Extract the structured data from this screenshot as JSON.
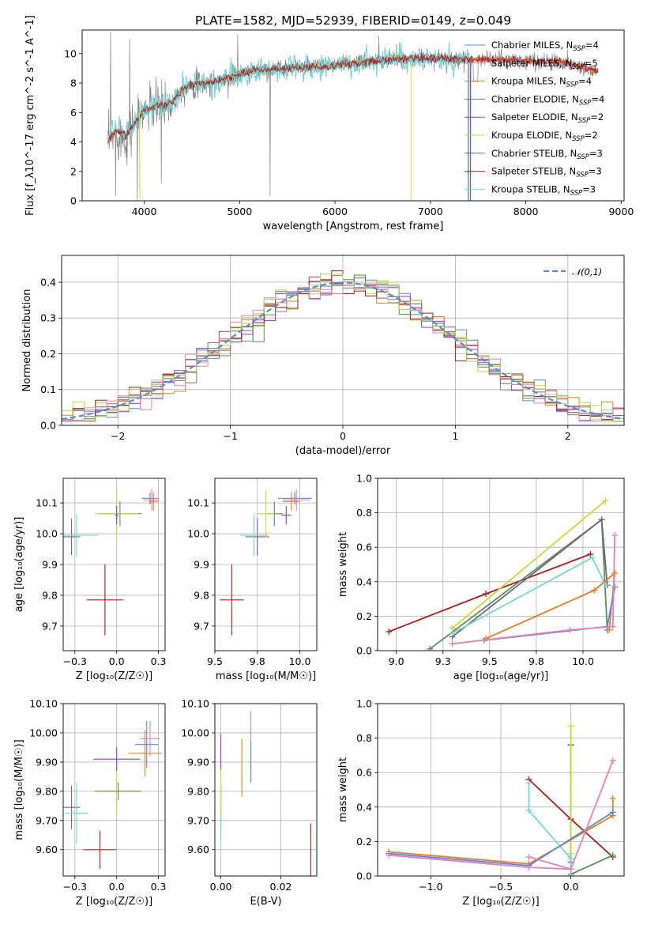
{
  "colors": [
    "#5b87d6",
    "#e07f25",
    "#5b8a5b",
    "#9b35c7",
    "#c8d640",
    "#6b6b6b",
    "#a81c1c",
    "#7bd4d4",
    "#e082b7",
    "#9c6b4a",
    "#a5d16a"
  ],
  "chart_data": [
    {
      "id": "spectrum",
      "type": "line",
      "title": "PLATE=1582, MJD=52939, FIBERID=0149, z=0.049",
      "xlabel": "wavelength [Angstrom, rest frame]",
      "ylabel": "Flux [f_λ10^-17 erg cm^-2 s^-1 A^-1]",
      "xlim": [
        3350,
        9030
      ],
      "ylim": [
        0,
        11.6
      ],
      "xticks": [
        4000,
        5000,
        6000,
        7000,
        8000,
        9000
      ],
      "yticks": [
        0,
        2,
        4,
        6,
        8,
        10
      ],
      "grid": false,
      "legend_position": "right",
      "data_range": [
        3620,
        8760
      ],
      "continuum": {
        "x": [
          3620,
          3700,
          3800,
          3900,
          4000,
          4100,
          4200,
          4300,
          4400,
          4500,
          4600,
          4800,
          5000,
          5200,
          5500,
          5800,
          6000,
          6300,
          6600,
          7000,
          7300,
          7600,
          8000,
          8400,
          8760
        ],
        "y": [
          3.9,
          4.6,
          4.3,
          5.3,
          6.1,
          6.4,
          6.5,
          6.7,
          7.6,
          7.9,
          7.9,
          8.2,
          8.6,
          8.9,
          9.0,
          9.1,
          9.2,
          9.4,
          9.6,
          9.7,
          9.6,
          9.6,
          9.5,
          9.4,
          8.8
        ]
      },
      "series": [
        {
          "name": "Chabrier MILES, N_SSP=4"
        },
        {
          "name": "Salpeter MILES, N_SSP=5"
        },
        {
          "name": "Kroupa MILES, N_SSP=4"
        },
        {
          "name": "Chabrier ELODIE, N_SSP=4"
        },
        {
          "name": "Salpeter ELODIE, N_SSP=2"
        },
        {
          "name": "Kroupa ELODIE, N_SSP=2"
        },
        {
          "name": "Chabrier STELIB, N_SSP=3"
        },
        {
          "name": "Salpeter STELIB, N_SSP=3"
        },
        {
          "name": "Kroupa STELIB, N_SSP=3"
        }
      ]
    },
    {
      "id": "residuals",
      "type": "histogram",
      "xlabel": "(data-model)/error",
      "ylabel": "Normed distribution",
      "xlim": [
        -2.5,
        2.5
      ],
      "ylim": [
        0,
        0.475
      ],
      "xticks": [
        -2,
        -1,
        0,
        1,
        2
      ],
      "yticks": [
        0,
        0.1,
        0.2,
        0.3,
        0.4
      ],
      "grid": true,
      "bin_width": 0.1,
      "reference": {
        "name": "𝒩(0,1)",
        "type": "dashed-line"
      },
      "legend_position": "top-right"
    },
    {
      "id": "age_vs_Z",
      "type": "errorbar",
      "xlabel": "Z [log₁₀(Z/Z☉)]",
      "ylabel": "age  [log₁₀(age/yr)]",
      "xlim": [
        -0.32,
        0.29
      ],
      "ylim": [
        9.62,
        10.18
      ],
      "xticks": [
        -0.25,
        0.0,
        0.25
      ],
      "yticks": [
        9.7,
        9.8,
        9.9,
        10.0,
        10.1
      ],
      "grid": true,
      "points": [
        {
          "x": -0.27,
          "xerr": 0.05,
          "y": 9.99,
          "yerr": 0.06,
          "c": 5
        },
        {
          "x": -0.24,
          "xerr": 0.13,
          "y": 9.995,
          "yerr": 0.07,
          "c": 7
        },
        {
          "x": -0.07,
          "xerr": 0.11,
          "y": 9.785,
          "yerr": 0.115,
          "c": 6
        },
        {
          "x": 0.02,
          "xerr": 0.13,
          "y": 10.065,
          "yerr": 0.04,
          "c": 2
        },
        {
          "x": 0.0,
          "xerr": 0.13,
          "y": 10.065,
          "yerr": 0.075,
          "c": 4
        },
        {
          "x": 0.0,
          "xerr": 0.01,
          "y": 10.06,
          "yerr": 0.03,
          "c": 3
        },
        {
          "x": 0.2,
          "xerr": 0.05,
          "y": 10.115,
          "yerr": 0.02,
          "c": 0
        },
        {
          "x": 0.21,
          "xerr": 0.05,
          "y": 10.11,
          "yerr": 0.035,
          "c": 8
        },
        {
          "x": 0.22,
          "xerr": 0.03,
          "y": 10.105,
          "yerr": 0.03,
          "c": 1
        }
      ]
    },
    {
      "id": "age_vs_mass",
      "type": "errorbar",
      "xlabel": "mass [log₁₀(M/M☉)]",
      "ylabel": "",
      "xlim": [
        9.5,
        10.1
      ],
      "ylim": [
        9.62,
        10.18
      ],
      "xticks": [
        9.5,
        9.75,
        10.0
      ],
      "yticks": [
        9.7,
        9.8,
        9.9,
        10.0,
        10.1
      ],
      "grid": true,
      "points": [
        {
          "x": 9.75,
          "xerr": 0.07,
          "y": 9.99,
          "yerr": 0.06,
          "c": 5
        },
        {
          "x": 9.73,
          "xerr": 0.08,
          "y": 9.995,
          "yerr": 0.07,
          "c": 7
        },
        {
          "x": 9.6,
          "xerr": 0.07,
          "y": 9.785,
          "yerr": 0.115,
          "c": 6
        },
        {
          "x": 9.85,
          "xerr": 0.05,
          "y": 10.065,
          "yerr": 0.04,
          "c": 2
        },
        {
          "x": 9.8,
          "xerr": 0.05,
          "y": 10.065,
          "yerr": 0.075,
          "c": 4
        },
        {
          "x": 9.92,
          "xerr": 0.03,
          "y": 10.06,
          "yerr": 0.03,
          "c": 3
        },
        {
          "x": 9.97,
          "xerr": 0.1,
          "y": 10.115,
          "yerr": 0.02,
          "c": 0
        },
        {
          "x": 9.98,
          "xerr": 0.08,
          "y": 10.11,
          "yerr": 0.035,
          "c": 8
        },
        {
          "x": 9.95,
          "xerr": 0.05,
          "y": 10.105,
          "yerr": 0.03,
          "c": 1
        }
      ]
    },
    {
      "id": "weight_vs_age",
      "type": "line",
      "xlabel": "age  [log₁₀(age/yr)]",
      "ylabel": "mass weight",
      "xlim": [
        8.9,
        10.22
      ],
      "ylim": [
        0,
        1
      ],
      "xticks": [
        9.0,
        9.25,
        9.5,
        9.75,
        10.0
      ],
      "yticks": [
        0,
        0.2,
        0.4,
        0.6,
        0.8,
        1.0
      ],
      "grid": true,
      "series": [
        {
          "c": 6,
          "x": [
            8.96,
            9.48,
            10.04
          ],
          "y": [
            0.11,
            0.33,
            0.56
          ]
        },
        {
          "c": 2,
          "x": [
            9.18,
            10.1,
            10.13
          ],
          "y": [
            0.01,
            0.76,
            0.12
          ]
        },
        {
          "c": 5,
          "x": [
            9.3,
            10.1,
            10.13
          ],
          "y": [
            0.08,
            0.76,
            0.38
          ]
        },
        {
          "c": 4,
          "x": [
            9.3,
            10.12
          ],
          "y": [
            0.13,
            0.87
          ]
        },
        {
          "c": 7,
          "x": [
            9.3,
            10.05,
            10.12
          ],
          "y": [
            0.1,
            0.54,
            0.38
          ]
        },
        {
          "c": 1,
          "x": [
            9.48,
            10.06,
            10.17,
            10.14
          ],
          "y": [
            0.07,
            0.35,
            0.45,
            0.12
          ]
        },
        {
          "c": 0,
          "x": [
            9.47,
            10.13,
            10.17
          ],
          "y": [
            0.06,
            0.14,
            0.37
          ]
        },
        {
          "c": 8,
          "x": [
            9.3,
            9.93,
            10.16,
            10.17
          ],
          "y": [
            0.04,
            0.12,
            0.14,
            0.67
          ]
        }
      ]
    },
    {
      "id": "mass_vs_Z",
      "type": "errorbar",
      "xlabel": "Z [log₁₀(Z/Z☉)]",
      "ylabel": "mass [log₁₀(M/M☉)]",
      "xlim": [
        -0.32,
        0.29
      ],
      "ylim": [
        9.51,
        10.1
      ],
      "xticks": [
        -0.25,
        0.0,
        0.25
      ],
      "yticks": [
        9.6,
        9.7,
        9.8,
        9.9,
        10.0,
        10.1
      ],
      "grid": true,
      "points": [
        {
          "x": -0.27,
          "xerr": 0.05,
          "y": 9.745,
          "yerr": 0.075,
          "c": 5
        },
        {
          "x": -0.24,
          "xerr": 0.07,
          "y": 9.725,
          "yerr": 0.105,
          "c": 7
        },
        {
          "x": -0.1,
          "xerr": 0.1,
          "y": 9.6,
          "yerr": 0.065,
          "c": 6
        },
        {
          "x": 0.0,
          "xerr": 0.14,
          "y": 9.8,
          "yerr": 0.08,
          "c": 4
        },
        {
          "x": 0.01,
          "xerr": 0.14,
          "y": 9.8,
          "yerr": 0.03,
          "c": 2
        },
        {
          "x": 0.0,
          "xerr": 0.14,
          "y": 9.91,
          "yerr": 0.04,
          "c": 3
        },
        {
          "x": 0.17,
          "xerr": 0.1,
          "y": 9.93,
          "yerr": 0.08,
          "c": 1
        },
        {
          "x": 0.18,
          "xerr": 0.07,
          "y": 9.96,
          "yerr": 0.08,
          "c": 0
        },
        {
          "x": 0.2,
          "xerr": 0.06,
          "y": 9.98,
          "yerr": 0.06,
          "c": 8
        }
      ]
    },
    {
      "id": "mass_vs_ebv",
      "type": "errorbar",
      "xlabel": "E(B-V)",
      "ylabel": "",
      "xlim": [
        -0.002,
        0.032
      ],
      "ylim": [
        9.51,
        10.1
      ],
      "xticks": [
        0.0,
        0.02
      ],
      "yticks": [
        9.6,
        9.7,
        9.8,
        9.9,
        10.0,
        10.1
      ],
      "grid": true,
      "points": [
        {
          "x": 0.0,
          "xerr": 0,
          "y": 9.745,
          "yerr": 0.075,
          "c": 5
        },
        {
          "x": 0.0,
          "xerr": 0,
          "y": 9.725,
          "yerr": 0.105,
          "c": 7
        },
        {
          "x": 0.03,
          "xerr": 0,
          "y": 9.6,
          "yerr": 0.09,
          "c": 6
        },
        {
          "x": 0.0,
          "xerr": 0,
          "y": 9.8,
          "yerr": 0.08,
          "c": 4
        },
        {
          "x": 0.0,
          "xerr": 0,
          "y": 9.935,
          "yerr": 0.06,
          "c": 3
        },
        {
          "x": 0.007,
          "xerr": 0,
          "y": 9.88,
          "yerr": 0.1,
          "c": 1
        },
        {
          "x": 0.01,
          "xerr": 0,
          "y": 9.955,
          "yerr": 0.12,
          "c": 8
        },
        {
          "x": 0.01,
          "xerr": 0,
          "y": 9.9,
          "yerr": 0.07,
          "c": 0
        }
      ]
    },
    {
      "id": "weight_vs_Z",
      "type": "line",
      "xlabel": "Z [log₁₀(Z/Z☉)]",
      "ylabel": "mass weight",
      "xlim": [
        -1.38,
        0.38
      ],
      "ylim": [
        0,
        1
      ],
      "xticks": [
        -1.0,
        -0.5,
        0.0
      ],
      "yticks": [
        0,
        0.2,
        0.4,
        0.6,
        0.8,
        1.0
      ],
      "grid": true,
      "series": [
        {
          "c": 6,
          "x": [
            -0.3,
            0.0,
            0.3
          ],
          "y": [
            0.56,
            0.33,
            0.11
          ]
        },
        {
          "c": 2,
          "x": [
            0.0,
            0.0,
            0.3
          ],
          "y": [
            0.76,
            0.01,
            0.12
          ]
        },
        {
          "c": 5,
          "x": [
            0.0,
            0.0
          ],
          "y": [
            0.76,
            0.08
          ]
        },
        {
          "c": 4,
          "x": [
            0.0,
            0.0
          ],
          "y": [
            0.87,
            0.13
          ]
        },
        {
          "c": 7,
          "x": [
            -0.3,
            -0.3,
            0.0,
            0.0
          ],
          "y": [
            0.54,
            0.38,
            0.1,
            0.0
          ]
        },
        {
          "c": 1,
          "x": [
            -1.3,
            -0.3,
            0.3,
            0.3
          ],
          "y": [
            0.14,
            0.07,
            0.35,
            0.45
          ]
        },
        {
          "c": 0,
          "x": [
            -1.3,
            -0.3,
            0.3
          ],
          "y": [
            0.13,
            0.06,
            0.37
          ]
        },
        {
          "c": 8,
          "x": [
            -1.3,
            -0.3,
            0.0,
            0.3
          ],
          "y": [
            0.12,
            0.05,
            0.04,
            0.67
          ]
        },
        {
          "c": 8,
          "x": [
            -0.3,
            0.0
          ],
          "y": [
            0.11,
            0.04
          ]
        }
      ]
    }
  ]
}
